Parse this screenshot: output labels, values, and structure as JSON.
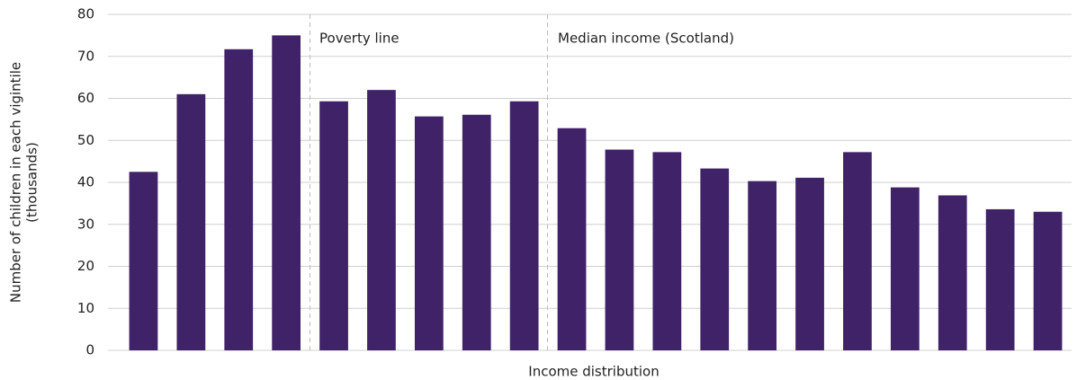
{
  "chart_data": {
    "type": "bar",
    "ylabel": [
      "Number of children in each vigintile",
      "(thousands)"
    ],
    "xlabel": "Income distribution",
    "annotations": [
      "Poverty line",
      "Median income (Scotland)"
    ],
    "categories": [
      null,
      null,
      null,
      null,
      null,
      null,
      null,
      null,
      null,
      null,
      null,
      null,
      null,
      null,
      null,
      null,
      null,
      null,
      null,
      null
    ],
    "values": [
      42.5,
      61,
      71.7,
      75,
      59.3,
      62,
      55.7,
      56.1,
      59.3,
      52.9,
      47.8,
      47.2,
      43.3,
      40.3,
      41.1,
      47.2,
      38.8,
      36.9,
      33.6,
      33
    ],
    "color": "#3f2268",
    "ylim": [
      0,
      80
    ],
    "yticks": [
      0,
      10,
      20,
      30,
      40,
      50,
      60,
      70,
      80
    ],
    "grid": true
  }
}
